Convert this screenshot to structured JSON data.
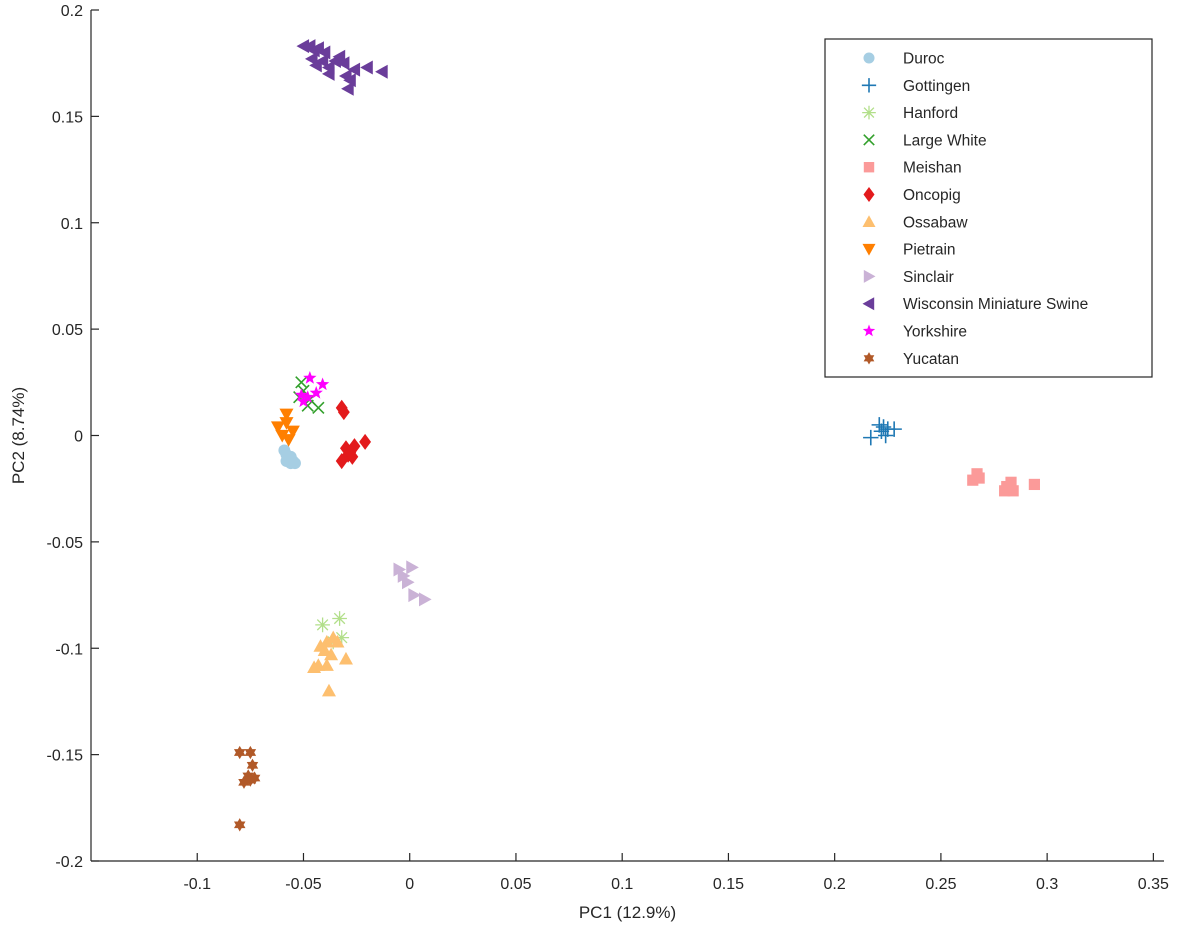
{
  "chart_data": {
    "type": "scatter",
    "xlabel": "PC1 (12.9%)",
    "ylabel": "PC2 (8.74%)",
    "xlim": [
      -0.15,
      0.355
    ],
    "ylim": [
      -0.2,
      0.2
    ],
    "xticks": [
      -0.1,
      -0.05,
      0,
      0.05,
      0.1,
      0.15,
      0.2,
      0.25,
      0.3,
      0.35
    ],
    "xtick_labels": [
      "-0.1",
      "-0.05",
      "0",
      "0.05",
      "0.1",
      "0.15",
      "0.2",
      "0.25",
      "0.3",
      "0.35"
    ],
    "yticks": [
      -0.2,
      -0.15,
      -0.1,
      -0.05,
      0,
      0.05,
      0.1,
      0.15,
      0.2
    ],
    "ytick_labels": [
      "-0.2",
      "-0.15",
      "-0.1",
      "-0.05",
      "0",
      "0.05",
      "0.1",
      "0.15",
      "0.2"
    ],
    "legend_position": "top-right",
    "series": [
      {
        "name": "Duroc",
        "marker": "circle",
        "color": "#a6cee3",
        "points": [
          [
            -0.059,
            -0.007
          ],
          [
            -0.058,
            -0.009
          ],
          [
            -0.057,
            -0.011
          ],
          [
            -0.056,
            -0.013
          ],
          [
            -0.055,
            -0.012
          ],
          [
            -0.054,
            -0.013
          ],
          [
            -0.058,
            -0.012
          ],
          [
            -0.056,
            -0.01
          ]
        ]
      },
      {
        "name": "Gottingen",
        "marker": "plus",
        "color": "#1f78b4",
        "points": [
          [
            0.217,
            -0.001
          ],
          [
            0.221,
            0.005
          ],
          [
            0.223,
            0.004
          ],
          [
            0.224,
            0.0
          ],
          [
            0.225,
            0.003
          ],
          [
            0.228,
            0.003
          ],
          [
            0.222,
            0.002
          ]
        ]
      },
      {
        "name": "Hanford",
        "marker": "asterisk",
        "color": "#b2df8a",
        "points": [
          [
            -0.041,
            -0.089
          ],
          [
            -0.033,
            -0.086
          ],
          [
            -0.032,
            -0.095
          ],
          [
            -0.036,
            -0.097
          ]
        ]
      },
      {
        "name": "Large White",
        "marker": "x",
        "color": "#33a02c",
        "points": [
          [
            -0.051,
            0.025
          ],
          [
            -0.05,
            0.021
          ],
          [
            -0.052,
            0.018
          ],
          [
            -0.047,
            0.017
          ],
          [
            -0.048,
            0.014
          ],
          [
            -0.043,
            0.013
          ]
        ]
      },
      {
        "name": "Meishan",
        "marker": "square",
        "color": "#fb9a99",
        "points": [
          [
            0.267,
            -0.018
          ],
          [
            0.265,
            -0.021
          ],
          [
            0.268,
            -0.02
          ],
          [
            0.28,
            -0.026
          ],
          [
            0.283,
            -0.022
          ],
          [
            0.284,
            -0.026
          ],
          [
            0.281,
            -0.024
          ],
          [
            0.294,
            -0.023
          ]
        ]
      },
      {
        "name": "Oncopig",
        "marker": "diamond",
        "color": "#e31a1c",
        "points": [
          [
            -0.032,
            0.013
          ],
          [
            -0.031,
            0.011
          ],
          [
            -0.03,
            -0.006
          ],
          [
            -0.032,
            -0.012
          ],
          [
            -0.029,
            -0.009
          ],
          [
            -0.027,
            -0.01
          ],
          [
            -0.026,
            -0.005
          ],
          [
            -0.021,
            -0.003
          ],
          [
            -0.028,
            -0.008
          ]
        ]
      },
      {
        "name": "Ossabaw",
        "marker": "triangle-up",
        "color": "#fdbf6f",
        "points": [
          [
            -0.042,
            -0.099
          ],
          [
            -0.04,
            -0.101
          ],
          [
            -0.039,
            -0.097
          ],
          [
            -0.036,
            -0.095
          ],
          [
            -0.034,
            -0.097
          ],
          [
            -0.037,
            -0.103
          ],
          [
            -0.043,
            -0.108
          ],
          [
            -0.045,
            -0.109
          ],
          [
            -0.039,
            -0.108
          ],
          [
            -0.03,
            -0.105
          ],
          [
            -0.038,
            -0.12
          ]
        ]
      },
      {
        "name": "Pietrain",
        "marker": "triangle-down",
        "color": "#ff7f00",
        "points": [
          [
            -0.062,
            0.004
          ],
          [
            -0.058,
            0.01
          ],
          [
            -0.058,
            0.006
          ],
          [
            -0.055,
            0.002
          ],
          [
            -0.057,
            -0.002
          ],
          [
            -0.06,
            0.0
          ]
        ]
      },
      {
        "name": "Sinclair",
        "marker": "triangle-right",
        "color": "#cab2d6",
        "points": [
          [
            -0.005,
            -0.063
          ],
          [
            0.001,
            -0.062
          ],
          [
            -0.003,
            -0.066
          ],
          [
            -0.001,
            -0.069
          ],
          [
            0.007,
            -0.077
          ],
          [
            0.002,
            -0.075
          ]
        ]
      },
      {
        "name": "Wisconsin Miniature Swine",
        "marker": "triangle-left",
        "color": "#6a3d9a",
        "points": [
          [
            -0.05,
            0.183
          ],
          [
            -0.047,
            0.183
          ],
          [
            -0.045,
            0.181
          ],
          [
            -0.043,
            0.182
          ],
          [
            -0.04,
            0.18
          ],
          [
            -0.046,
            0.177
          ],
          [
            -0.044,
            0.174
          ],
          [
            -0.041,
            0.176
          ],
          [
            -0.038,
            0.173
          ],
          [
            -0.035,
            0.176
          ],
          [
            -0.033,
            0.178
          ],
          [
            -0.031,
            0.175
          ],
          [
            -0.038,
            0.17
          ],
          [
            -0.03,
            0.169
          ],
          [
            -0.028,
            0.167
          ],
          [
            -0.029,
            0.163
          ],
          [
            -0.02,
            0.173
          ],
          [
            -0.013,
            0.171
          ],
          [
            -0.026,
            0.172
          ]
        ]
      },
      {
        "name": "Yorkshire",
        "marker": "star",
        "color": "#ff00ff",
        "points": [
          [
            -0.047,
            0.027
          ],
          [
            -0.041,
            0.024
          ],
          [
            -0.044,
            0.02
          ],
          [
            -0.048,
            0.018
          ],
          [
            -0.051,
            0.019
          ],
          [
            -0.05,
            0.016
          ]
        ]
      },
      {
        "name": "Yucatan",
        "marker": "hexagram",
        "color": "#b15928",
        "points": [
          [
            -0.08,
            -0.149
          ],
          [
            -0.075,
            -0.149
          ],
          [
            -0.074,
            -0.155
          ],
          [
            -0.076,
            -0.16
          ],
          [
            -0.073,
            -0.161
          ],
          [
            -0.078,
            -0.163
          ],
          [
            -0.075,
            -0.162
          ],
          [
            -0.08,
            -0.183
          ]
        ]
      }
    ]
  }
}
